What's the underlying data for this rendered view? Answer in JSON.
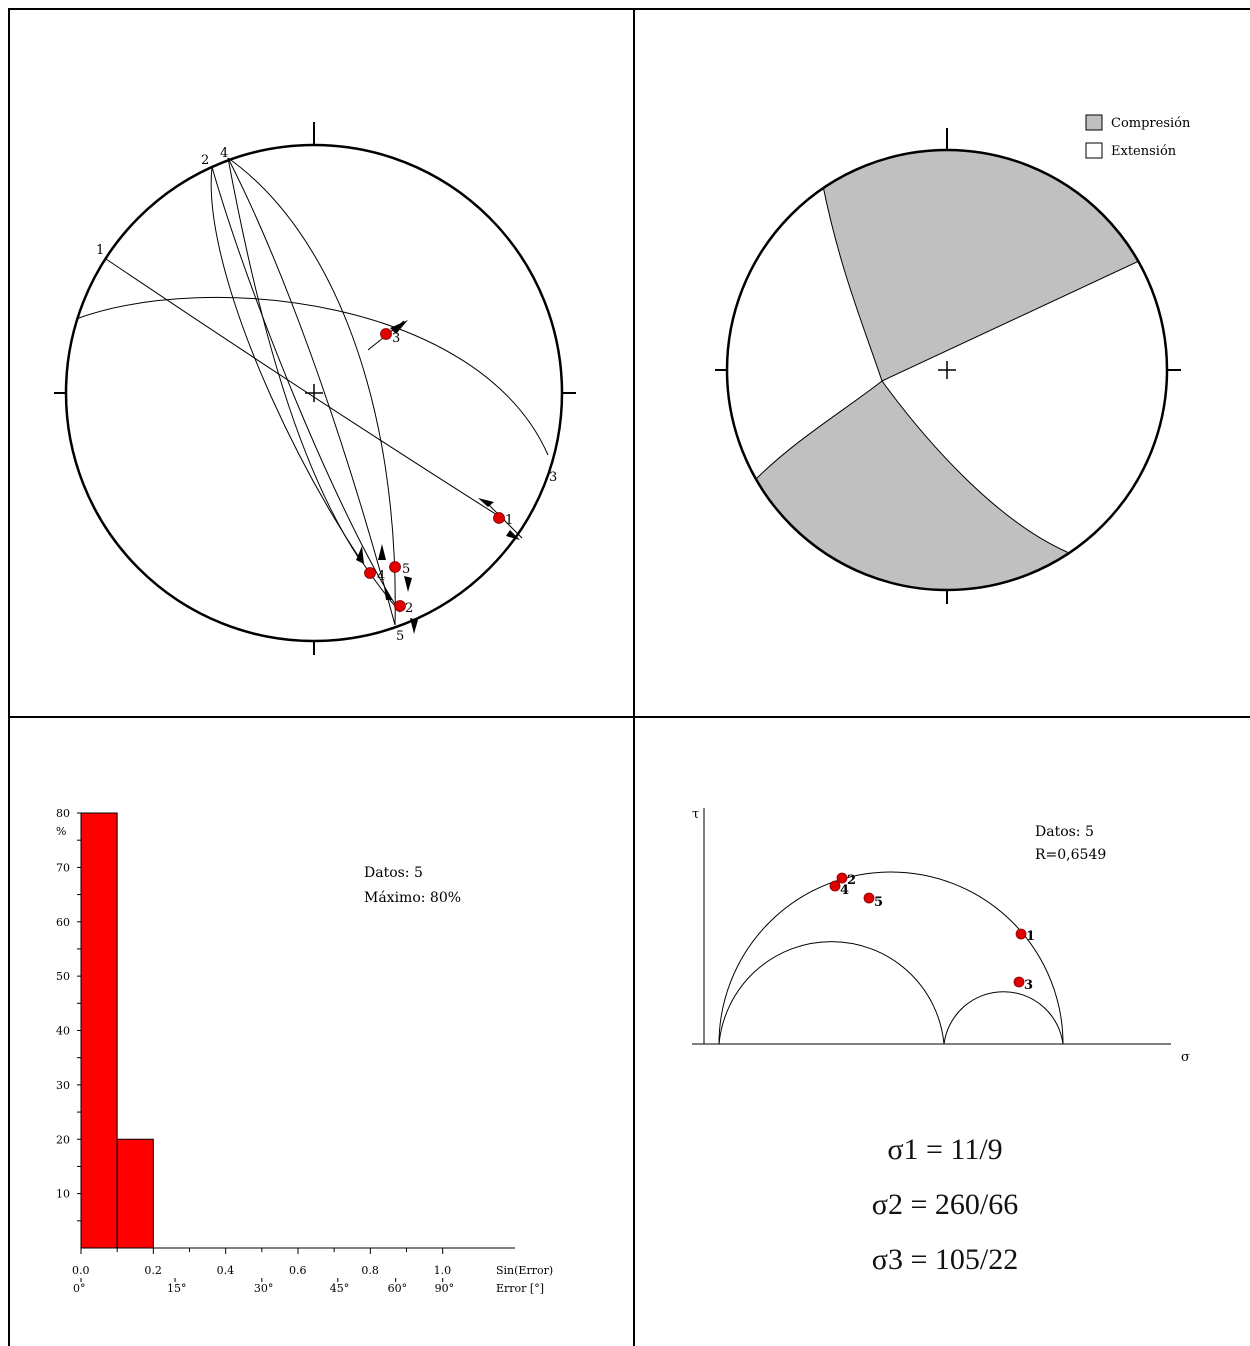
{
  "stereonet": {
    "plane_labels": [
      "1",
      "2",
      "3",
      "4",
      "5"
    ],
    "points": [
      {
        "id": "1",
        "label": "1"
      },
      {
        "id": "2",
        "label": "2"
      },
      {
        "id": "3",
        "label": "3"
      },
      {
        "id": "4",
        "label": "4"
      },
      {
        "id": "5",
        "label": "5"
      }
    ],
    "point_color": "#e00000"
  },
  "mechanism": {
    "legend": [
      {
        "label": "Compresión",
        "color": "#c0c0c0"
      },
      {
        "label": "Extensión",
        "color": "#ffffff"
      }
    ]
  },
  "chart_data": {
    "type": "bar",
    "series": [
      {
        "values": [
          80,
          20
        ]
      }
    ],
    "bin_edges": [
      0.0,
      0.1,
      0.2
    ],
    "xlim": [
      0.0,
      1.2
    ],
    "ylim": [
      0,
      80
    ],
    "xticks_sin": [
      "0.0",
      "0.2",
      "0.4",
      "0.6",
      "0.8",
      "1.0"
    ],
    "xticks_deg": [
      "0°",
      "15°",
      "30°",
      "45°",
      "60°",
      "90°"
    ],
    "xlabel_sin": "Sin(Error)",
    "xlabel_deg": "Error [°]",
    "yticks": [
      "80",
      "70",
      "60",
      "50",
      "40",
      "30",
      "20",
      "10"
    ],
    "ylabel": "%",
    "annotation_lines": [
      "Datos: 5",
      "Máximo: 80%"
    ],
    "bar_color": "#ff0000"
  },
  "mohr": {
    "tau_label": "τ",
    "sigma_label": "σ",
    "annotation_lines": [
      "Datos: 5",
      "R=0,6549"
    ],
    "points": [
      {
        "label": "1"
      },
      {
        "label": "2"
      },
      {
        "label": "3"
      },
      {
        "label": "4"
      },
      {
        "label": "5"
      }
    ],
    "point_color": "#e00000"
  },
  "stresses": [
    "σ1 = 11/9",
    "σ2 = 260/66",
    "σ3 = 105/22"
  ]
}
